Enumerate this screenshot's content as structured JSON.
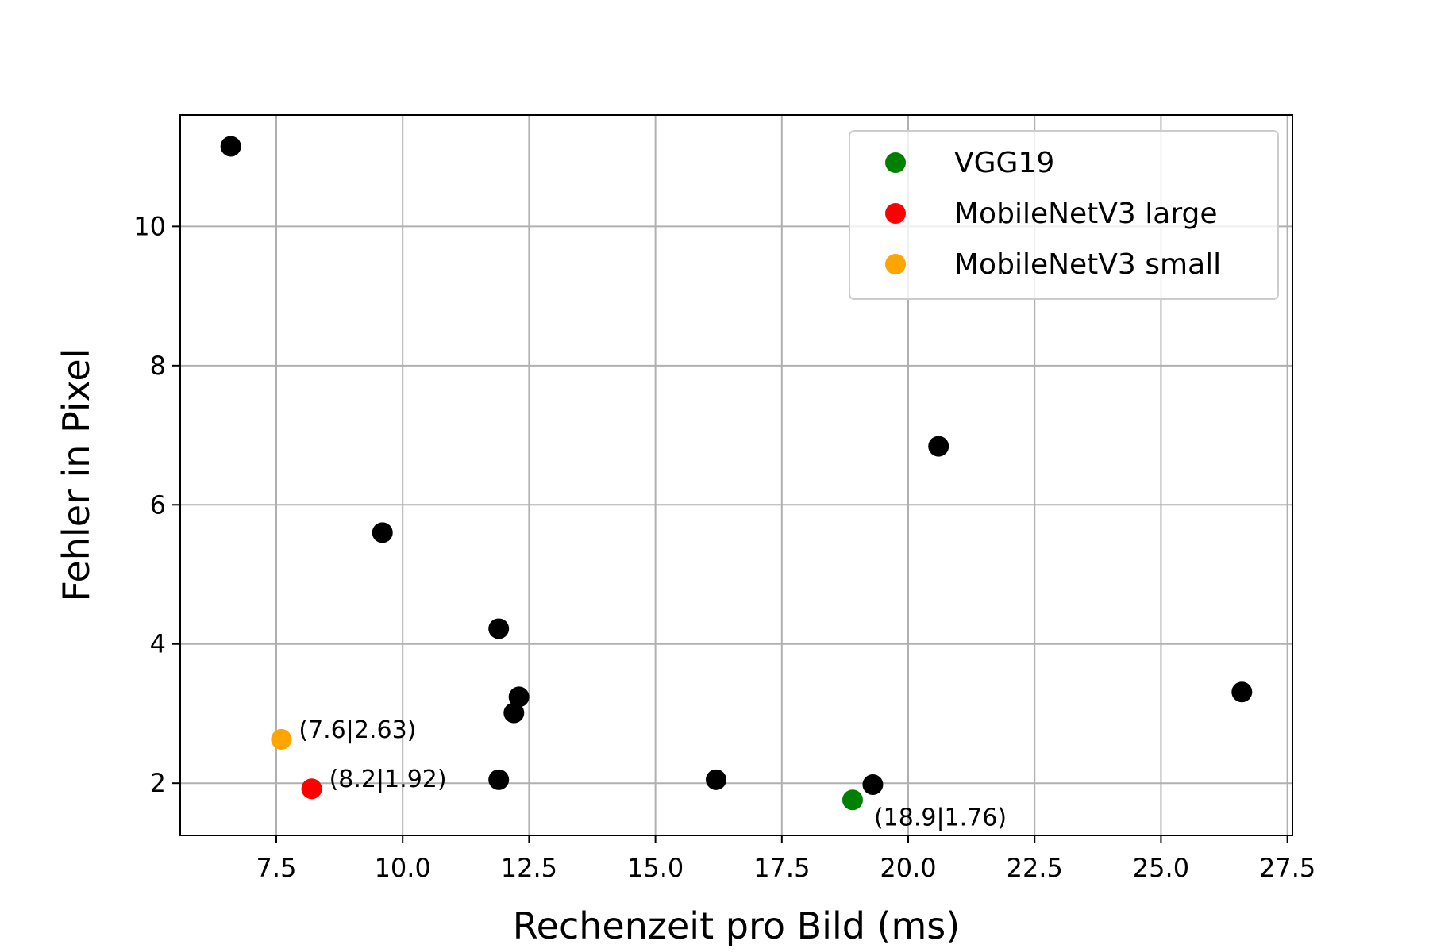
{
  "chart_data": {
    "type": "scatter",
    "xlabel": "Rechenzeit pro Bild (ms)",
    "ylabel": "Fehler in Pixel",
    "xlim": [
      5.6,
      27.6
    ],
    "ylim": [
      1.25,
      11.6
    ],
    "xticks": [
      7.5,
      10.0,
      12.5,
      15.0,
      17.5,
      20.0,
      22.5,
      25.0,
      27.5
    ],
    "xtick_labels": [
      "7.5",
      "10.0",
      "12.5",
      "15.0",
      "17.5",
      "20.0",
      "22.5",
      "25.0",
      "27.5"
    ],
    "yticks": [
      2,
      4,
      6,
      8,
      10
    ],
    "ytick_labels": [
      "2",
      "4",
      "6",
      "8",
      "10"
    ],
    "grid": true,
    "legend_position": "top-right",
    "series": [
      {
        "color": "#000000",
        "points": [
          {
            "x": 6.6,
            "y": 11.15
          },
          {
            "x": 9.6,
            "y": 5.6
          },
          {
            "x": 11.9,
            "y": 4.22
          },
          {
            "x": 12.3,
            "y": 3.24
          },
          {
            "x": 12.2,
            "y": 3.01
          },
          {
            "x": 11.9,
            "y": 2.05
          },
          {
            "x": 16.2,
            "y": 2.05
          },
          {
            "x": 19.3,
            "y": 1.98
          },
          {
            "x": 20.6,
            "y": 6.84
          },
          {
            "x": 26.6,
            "y": 3.31
          }
        ]
      },
      {
        "name": "VGG19",
        "color": "#008000",
        "points": [
          {
            "x": 18.9,
            "y": 1.76
          }
        ],
        "annotation": "(18.9|1.76)",
        "annotation_anchor": "below-right"
      },
      {
        "name": "MobileNetV3 large",
        "color": "#ff0000",
        "points": [
          {
            "x": 8.2,
            "y": 1.92
          }
        ],
        "annotation": "(8.2|1.92)",
        "annotation_anchor": "right"
      },
      {
        "name": "MobileNetV3 small",
        "color": "#ffa500",
        "points": [
          {
            "x": 7.6,
            "y": 2.63
          }
        ],
        "annotation": "(7.6|2.63)",
        "annotation_anchor": "right"
      }
    ]
  }
}
